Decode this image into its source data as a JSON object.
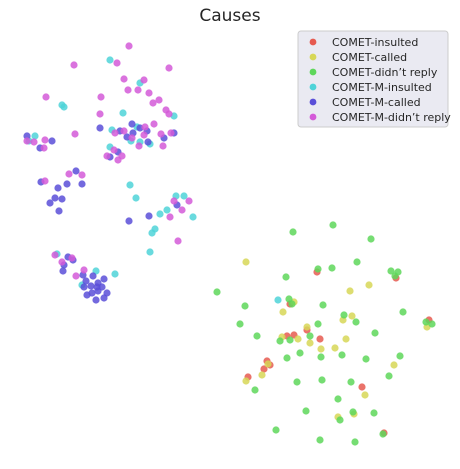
{
  "chart_data": {
    "type": "scatter",
    "title": "Causes",
    "xlabel": "",
    "ylabel": "",
    "grid": false,
    "legend_position": "top-right",
    "series": [
      {
        "name": "COMET-insulted",
        "color": "#e65a50",
        "points": [
          [
            317,
            272
          ],
          [
            396,
            278
          ],
          [
            290,
            304
          ],
          [
            287,
            336
          ],
          [
            307,
            330
          ],
          [
            320,
            339
          ],
          [
            294,
            335
          ],
          [
            429,
            320
          ],
          [
            267,
            361
          ],
          [
            264,
            369
          ],
          [
            248,
            377
          ],
          [
            362,
            387
          ],
          [
            384,
            433
          ],
          [
            270,
            365
          ]
        ]
      },
      {
        "name": "COMET-called",
        "color": "#d7d757",
        "points": [
          [
            246,
            262
          ],
          [
            350,
            291
          ],
          [
            369,
            285
          ],
          [
            294,
            302
          ],
          [
            283,
            312
          ],
          [
            343,
            320
          ],
          [
            352,
            316
          ],
          [
            307,
            327
          ],
          [
            282,
            337
          ],
          [
            298,
            339
          ],
          [
            335,
            348
          ],
          [
            346,
            339
          ],
          [
            394,
            365
          ],
          [
            268,
            364
          ],
          [
            262,
            375
          ],
          [
            246,
            381
          ],
          [
            365,
            395
          ],
          [
            338,
            417
          ],
          [
            354,
            414
          ],
          [
            427,
            327
          ],
          [
            310,
            343
          ],
          [
            321,
            349
          ]
        ]
      },
      {
        "name": "COMET-didn’t reply",
        "color": "#5ed75b",
        "points": [
          [
            333,
            225
          ],
          [
            293,
            232
          ],
          [
            371,
            239
          ],
          [
            357,
            262
          ],
          [
            286,
            277
          ],
          [
            332,
            268
          ],
          [
            318,
            269
          ],
          [
            245,
            306
          ],
          [
            323,
            305
          ],
          [
            289,
            299
          ],
          [
            292,
            304
          ],
          [
            217,
            292
          ],
          [
            240,
            324
          ],
          [
            257,
            336
          ],
          [
            280,
            341
          ],
          [
            290,
            340
          ],
          [
            310,
            336
          ],
          [
            318,
            324
          ],
          [
            344,
            315
          ],
          [
            356,
            322
          ],
          [
            375,
            333
          ],
          [
            403,
            312
          ],
          [
            432,
            324
          ],
          [
            426,
            322
          ],
          [
            391,
            271
          ],
          [
            395,
            276
          ],
          [
            398,
            272
          ],
          [
            342,
            355
          ],
          [
            366,
            359
          ],
          [
            400,
            356
          ],
          [
            287,
            358
          ],
          [
            300,
            353
          ],
          [
            321,
            357
          ],
          [
            389,
            376
          ],
          [
            351,
            382
          ],
          [
            322,
            380
          ],
          [
            297,
            382
          ],
          [
            255,
            390
          ],
          [
            338,
            399
          ],
          [
            306,
            411
          ],
          [
            353,
            412
          ],
          [
            374,
            413
          ],
          [
            340,
            420
          ],
          [
            383,
            434
          ],
          [
            276,
            430
          ],
          [
            320,
            440
          ],
          [
            355,
            442
          ]
        ]
      },
      {
        "name": "COMET-M-insulted",
        "color": "#4fd3d8",
        "points": [
          [
            110,
            60
          ],
          [
            140,
            83
          ],
          [
            123,
            113
          ],
          [
            62,
            105
          ],
          [
            64,
            107
          ],
          [
            137,
            127
          ],
          [
            140,
            142
          ],
          [
            131,
            141
          ],
          [
            110,
            147
          ],
          [
            150,
            144
          ],
          [
            112,
            130
          ],
          [
            174,
            116
          ],
          [
            29,
            141
          ],
          [
            35,
            136
          ],
          [
            130,
            185
          ],
          [
            136,
            198
          ],
          [
            176,
            196
          ],
          [
            184,
            196
          ],
          [
            167,
            210
          ],
          [
            193,
            217
          ],
          [
            155,
            229
          ],
          [
            152,
            233
          ],
          [
            150,
            252
          ],
          [
            57,
            254
          ],
          [
            82,
            285
          ],
          [
            96,
            271
          ],
          [
            115,
            274
          ],
          [
            278,
            300
          ],
          [
            160,
            214
          ]
        ]
      },
      {
        "name": "COMET-M-called",
        "color": "#5a4fd8",
        "points": [
          [
            100,
            128
          ],
          [
            120,
            131
          ],
          [
            132,
            124
          ],
          [
            140,
            128
          ],
          [
            133,
            133
          ],
          [
            147,
            131
          ],
          [
            127,
            137
          ],
          [
            148,
            142
          ],
          [
            164,
            138
          ],
          [
            174,
            133
          ],
          [
            110,
            157
          ],
          [
            118,
            152
          ],
          [
            52,
            141
          ],
          [
            40,
            148
          ],
          [
            27,
            136
          ],
          [
            41,
            182
          ],
          [
            58,
            188
          ],
          [
            67,
            184
          ],
          [
            82,
            184
          ],
          [
            76,
            171
          ],
          [
            55,
            198
          ],
          [
            59,
            211
          ],
          [
            50,
            203
          ],
          [
            62,
            199
          ],
          [
            149,
            216
          ],
          [
            129,
            221
          ],
          [
            68,
            257
          ],
          [
            64,
            265
          ],
          [
            73,
            260
          ],
          [
            63,
            271
          ],
          [
            86,
            281
          ],
          [
            93,
            276
          ],
          [
            84,
            287
          ],
          [
            98,
            283
          ],
          [
            104,
            279
          ],
          [
            102,
            287
          ],
          [
            92,
            293
          ],
          [
            87,
            295
          ],
          [
            83,
            275
          ],
          [
            107,
            293
          ],
          [
            98,
            291
          ],
          [
            96,
            300
          ],
          [
            104,
            298
          ],
          [
            177,
            205
          ],
          [
            97,
            287
          ],
          [
            91,
            286
          ]
        ]
      },
      {
        "name": "COMET-M-didn’t reply",
        "color": "#d45ad8",
        "points": [
          [
            129,
            46
          ],
          [
            74,
            65
          ],
          [
            117,
            63
          ],
          [
            169,
            68
          ],
          [
            124,
            79
          ],
          [
            144,
            80
          ],
          [
            128,
            90
          ],
          [
            138,
            90
          ],
          [
            149,
            93
          ],
          [
            153,
            103
          ],
          [
            159,
            100
          ],
          [
            166,
            110
          ],
          [
            46,
            97
          ],
          [
            101,
            97
          ],
          [
            100,
            114
          ],
          [
            169,
            114
          ],
          [
            154,
            124
          ],
          [
            171,
            133
          ],
          [
            144,
            135
          ],
          [
            124,
            131
          ],
          [
            132,
            138
          ],
          [
            122,
            156
          ],
          [
            107,
            156
          ],
          [
            114,
            150
          ],
          [
            118,
            160
          ],
          [
            139,
            146
          ],
          [
            163,
            146
          ],
          [
            161,
            134
          ],
          [
            145,
            127
          ],
          [
            115,
            133
          ],
          [
            27,
            141
          ],
          [
            44,
            148
          ],
          [
            75,
            134
          ],
          [
            45,
            181
          ],
          [
            69,
            174
          ],
          [
            82,
            175
          ],
          [
            174,
            201
          ],
          [
            182,
            210
          ],
          [
            189,
            201
          ],
          [
            170,
            217
          ],
          [
            178,
            241
          ],
          [
            55,
            255
          ],
          [
            72,
            258
          ],
          [
            62,
            262
          ],
          [
            84,
            270
          ],
          [
            76,
            276
          ],
          [
            45,
            140
          ],
          [
            34,
            142
          ]
        ]
      }
    ]
  }
}
